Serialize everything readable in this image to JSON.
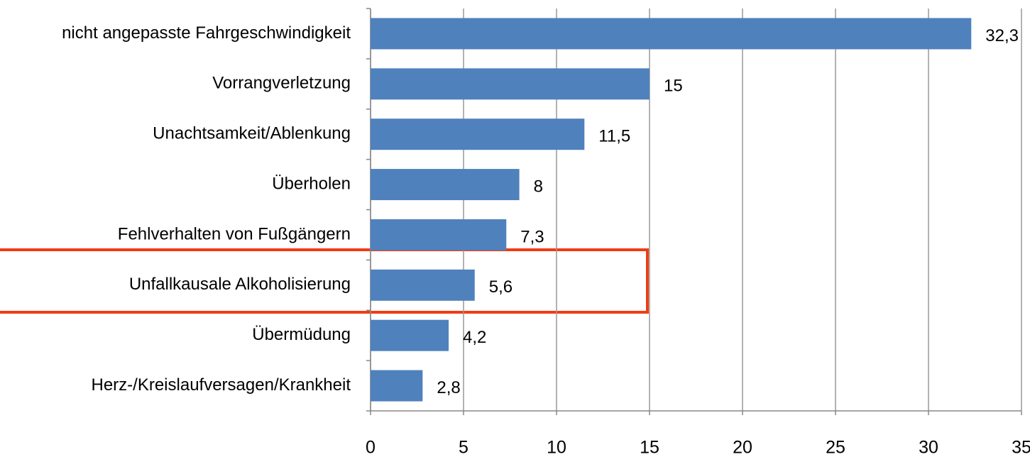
{
  "chart_data": {
    "type": "barh",
    "categories": [
      "nicht angepasste Fahrgeschwindigkeit",
      "Vorrangverletzung",
      "Unachtsamkeit/Ablenkung",
      "Überholen",
      "Fehlverhalten von Fußgängern",
      "Unfallkausale Alkoholisierung",
      "Übermüdung",
      "Herz-/Kreislaufversagen/Krankheit"
    ],
    "values": [
      32.3,
      15,
      11.5,
      8,
      7.3,
      5.6,
      4.2,
      2.8
    ],
    "value_labels": [
      "32,3",
      "15",
      "11,5",
      "8",
      "7,3",
      "5,6",
      "4,2",
      "2,8"
    ],
    "color": "#4f81bd",
    "xlim": [
      0,
      35
    ],
    "xticks": [
      0,
      5,
      10,
      15,
      20,
      25,
      30,
      35
    ],
    "grid": true
  }
}
